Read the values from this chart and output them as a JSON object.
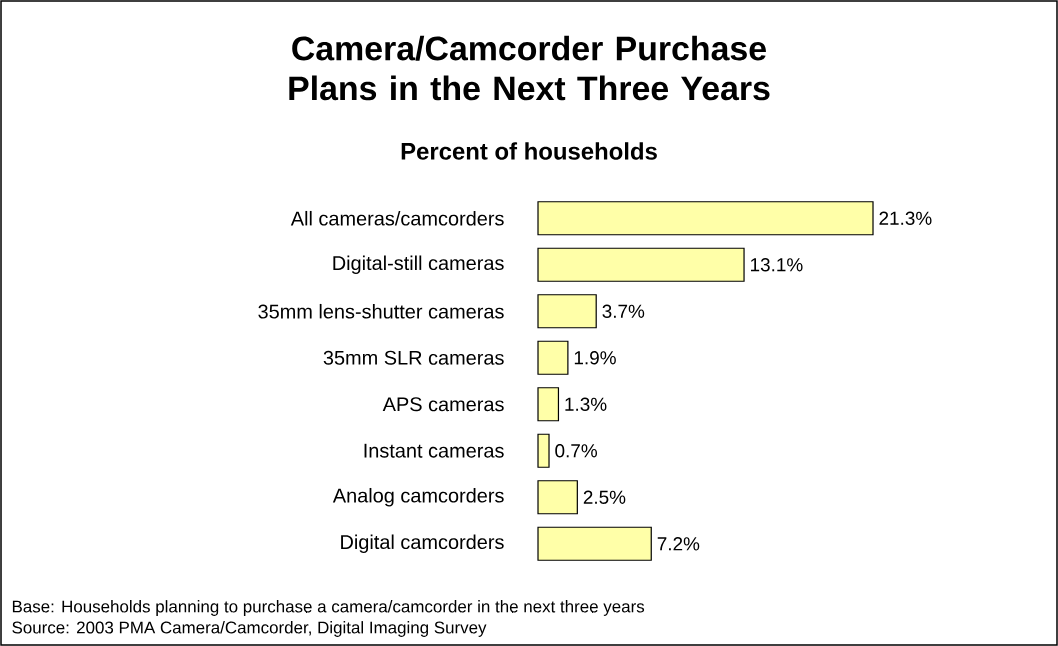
{
  "chart_data": {
    "type": "bar",
    "orientation": "horizontal",
    "title": "Camera/Camcorder Purchase Plans in the Next Three Years",
    "subtitle": "Percent of households",
    "categories": [
      "All cameras/camcorders",
      "Digital-still cameras",
      "35mm lens-shutter cameras",
      "35mm SLR cameras",
      "APS cameras",
      "Instant cameras",
      "Analog camcorders",
      "Digital camcorders"
    ],
    "values": [
      21.3,
      13.1,
      3.7,
      1.9,
      1.3,
      0.7,
      2.5,
      7.2
    ],
    "value_labels": [
      "21.3%",
      "13.1%",
      "3.7%",
      "1.9%",
      "1.3%",
      "0.7%",
      "2.5%",
      "7.2%"
    ],
    "color": "#ffffa8",
    "annotations": [
      "Base: Households planning to purchase a camera/camcorder in the next three years",
      "Source: 2003 PMA Camera/Camcorder, Digital Imaging Survey"
    ]
  }
}
